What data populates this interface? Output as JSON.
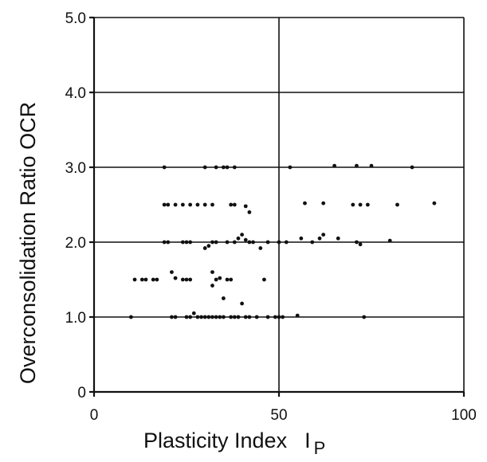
{
  "chart_data": {
    "type": "scatter",
    "title": "",
    "xlabel": "Plasticity Index",
    "xlabel_symbol": "I",
    "xlabel_subscript": "P",
    "ylabel": "Overconsolidation Ratio OCR",
    "xlim": [
      0,
      100
    ],
    "ylim": [
      0,
      5.0
    ],
    "x_ticks": [
      0,
      50,
      100
    ],
    "x_tick_labels": [
      "0",
      "50",
      "100"
    ],
    "y_ticks": [
      0,
      1.0,
      2.0,
      3.0,
      4.0,
      5.0
    ],
    "y_tick_labels": [
      "0",
      "1.0",
      "2.0",
      "3.0",
      "4.0",
      "5.0"
    ],
    "grid": "major",
    "series": [
      {
        "points": [
          [
            10,
            1.0
          ],
          [
            21,
            1.0
          ],
          [
            22,
            1.0
          ],
          [
            25,
            1.0
          ],
          [
            26,
            1.0
          ],
          [
            27,
            1.05
          ],
          [
            28,
            1.0
          ],
          [
            29,
            1.0
          ],
          [
            30,
            1.0
          ],
          [
            31,
            1.0
          ],
          [
            32,
            1.0
          ],
          [
            33,
            1.0
          ],
          [
            34,
            1.0
          ],
          [
            35,
            1.0
          ],
          [
            37,
            1.0
          ],
          [
            38,
            1.0
          ],
          [
            39,
            1.0
          ],
          [
            41,
            1.0
          ],
          [
            42,
            1.0
          ],
          [
            44,
            1.0
          ],
          [
            47,
            1.0
          ],
          [
            49,
            1.0
          ],
          [
            50,
            1.0
          ],
          [
            51,
            1.0
          ],
          [
            55,
            1.02
          ],
          [
            73,
            1.0
          ],
          [
            11,
            1.5
          ],
          [
            13,
            1.5
          ],
          [
            14,
            1.5
          ],
          [
            16,
            1.5
          ],
          [
            17,
            1.5
          ],
          [
            21,
            1.6
          ],
          [
            22,
            1.52
          ],
          [
            24,
            1.5
          ],
          [
            25,
            1.5
          ],
          [
            26,
            1.5
          ],
          [
            32,
            1.6
          ],
          [
            33,
            1.5
          ],
          [
            34,
            1.52
          ],
          [
            36,
            1.5
          ],
          [
            37,
            1.5
          ],
          [
            46,
            1.5
          ],
          [
            32,
            1.42
          ],
          [
            35,
            1.25
          ],
          [
            40,
            1.18
          ],
          [
            19,
            2.0
          ],
          [
            20,
            2.0
          ],
          [
            24,
            2.0
          ],
          [
            25,
            2.0
          ],
          [
            26,
            2.0
          ],
          [
            30,
            1.92
          ],
          [
            31,
            1.95
          ],
          [
            32,
            2.0
          ],
          [
            33,
            2.0
          ],
          [
            36,
            2.0
          ],
          [
            38,
            2.0
          ],
          [
            39,
            2.05
          ],
          [
            40,
            2.1
          ],
          [
            41,
            2.03
          ],
          [
            42,
            2.0
          ],
          [
            43,
            2.0
          ],
          [
            45,
            1.92
          ],
          [
            47,
            2.0
          ],
          [
            50,
            2.0
          ],
          [
            52,
            2.0
          ],
          [
            56,
            2.05
          ],
          [
            59,
            2.0
          ],
          [
            61,
            2.05
          ],
          [
            62,
            2.1
          ],
          [
            66,
            2.05
          ],
          [
            71,
            2.0
          ],
          [
            72,
            1.97
          ],
          [
            80,
            2.02
          ],
          [
            19,
            2.5
          ],
          [
            20,
            2.5
          ],
          [
            22,
            2.5
          ],
          [
            24,
            2.5
          ],
          [
            26,
            2.5
          ],
          [
            28,
            2.5
          ],
          [
            30,
            2.5
          ],
          [
            32,
            2.5
          ],
          [
            37,
            2.5
          ],
          [
            38,
            2.5
          ],
          [
            41,
            2.48
          ],
          [
            42,
            2.4
          ],
          [
            57,
            2.52
          ],
          [
            62,
            2.52
          ],
          [
            70,
            2.5
          ],
          [
            72,
            2.5
          ],
          [
            74,
            2.5
          ],
          [
            82,
            2.5
          ],
          [
            92,
            2.52
          ],
          [
            19,
            3.0
          ],
          [
            30,
            3.0
          ],
          [
            33,
            3.0
          ],
          [
            35,
            3.0
          ],
          [
            36,
            3.0
          ],
          [
            38,
            3.0
          ],
          [
            53,
            3.0
          ],
          [
            65,
            3.02
          ],
          [
            71,
            3.02
          ],
          [
            75,
            3.02
          ],
          [
            86,
            3.0
          ]
        ]
      }
    ]
  }
}
